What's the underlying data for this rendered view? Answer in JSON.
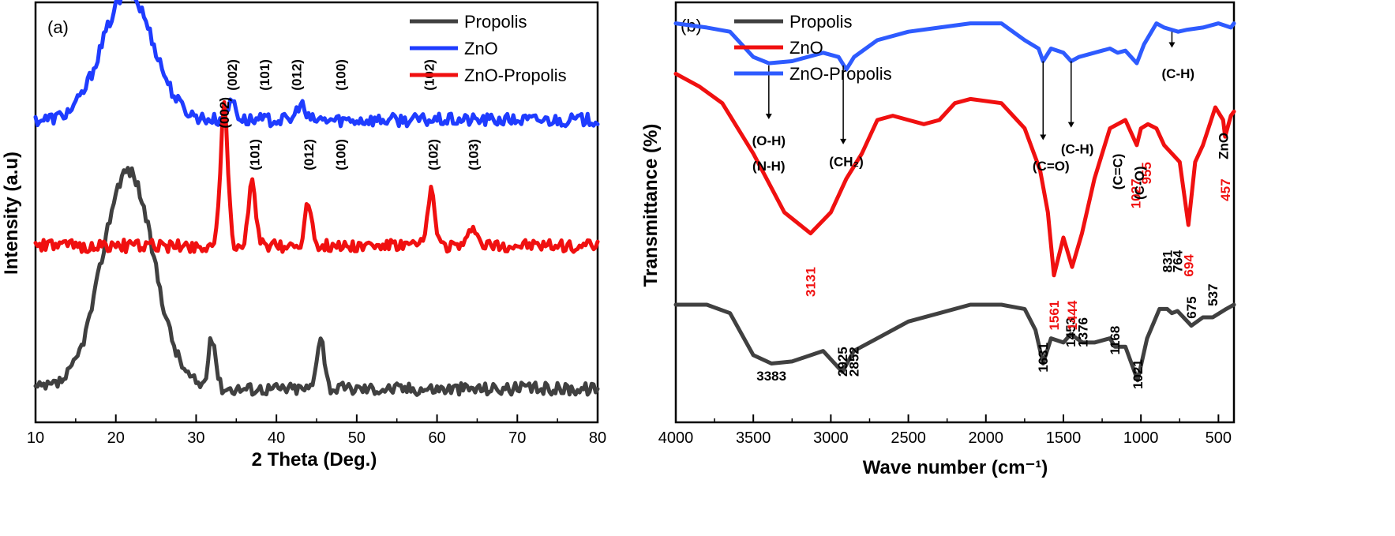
{
  "colors": {
    "black": "#404040",
    "blue": "#1f3cff",
    "red": "#f01010",
    "blue_b": "#2e5bff"
  },
  "chart_data": [
    {
      "type": "line",
      "panel_label": "(a)",
      "xlabel": "2 Theta (Deg.)",
      "ylabel": "Intensity (a.u)",
      "xlim": [
        10,
        80
      ],
      "x_ticks": [
        10,
        20,
        30,
        40,
        50,
        60,
        70,
        80
      ],
      "y_ticks_shown": false,
      "legend_position": "top-right",
      "series": [
        {
          "name": "Propolis",
          "color": "#404040",
          "baseline": 0.08,
          "peaks": [
            [
              21.5,
              0.52
            ],
            [
              32,
              0.12
            ],
            [
              45.5,
              0.13
            ]
          ]
        },
        {
          "name": "ZnO",
          "color": "#1f3cff",
          "baseline": 0.72,
          "peaks": [
            [
              21.5,
              0.3
            ],
            [
              34.5,
              0.05
            ],
            [
              43,
              0.04
            ]
          ]
        },
        {
          "name": "ZnO-Propolis",
          "color": "#f01010",
          "baseline": 0.42,
          "peaks": [
            [
              33.5,
              0.33
            ],
            [
              37,
              0.15
            ],
            [
              44,
              0.1
            ],
            [
              59.3,
              0.13
            ],
            [
              64.5,
              0.05
            ]
          ]
        }
      ],
      "annotations": [
        {
          "series": "ZnO",
          "labels": [
            {
              "x": 34.5,
              "text": "(002)"
            },
            {
              "x": 38.5,
              "text": "(101)"
            },
            {
              "x": 42.5,
              "text": "(012)"
            },
            {
              "x": 48,
              "text": "(100)"
            },
            {
              "x": 59,
              "text": "(102)"
            }
          ]
        },
        {
          "series": "ZnO-Propolis",
          "labels": [
            {
              "x": 33.5,
              "text": "(002)"
            },
            {
              "x": 37.3,
              "text": "(101)"
            },
            {
              "x": 44,
              "text": "(012)"
            },
            {
              "x": 48,
              "text": "(100)"
            },
            {
              "x": 59.5,
              "text": "(102)"
            },
            {
              "x": 64.5,
              "text": "(103)"
            }
          ]
        }
      ]
    },
    {
      "type": "line",
      "panel_label": "(b)",
      "xlabel": "Wave number (cm⁻¹)",
      "ylabel": "Transmittance (%)",
      "xlim": [
        4000,
        400
      ],
      "x_ticks": [
        4000,
        3500,
        3000,
        2500,
        2000,
        1500,
        1000,
        500
      ],
      "y_ticks_shown": false,
      "legend_position": "top-left",
      "series": [
        {
          "name": "Propolis",
          "color": "#404040",
          "points": [
            [
              4000,
              0.28
            ],
            [
              3800,
              0.28
            ],
            [
              3650,
              0.26
            ],
            [
              3500,
              0.16
            ],
            [
              3383,
              0.14
            ],
            [
              3250,
              0.145
            ],
            [
              3050,
              0.17
            ],
            [
              2925,
              0.12
            ],
            [
              2852,
              0.17
            ],
            [
              2700,
              0.2
            ],
            [
              2500,
              0.24
            ],
            [
              2300,
              0.26
            ],
            [
              2100,
              0.28
            ],
            [
              1900,
              0.28
            ],
            [
              1750,
              0.27
            ],
            [
              1680,
              0.22
            ],
            [
              1631,
              0.14
            ],
            [
              1580,
              0.2
            ],
            [
              1500,
              0.19
            ],
            [
              1453,
              0.21
            ],
            [
              1376,
              0.19
            ],
            [
              1300,
              0.19
            ],
            [
              1200,
              0.2
            ],
            [
              1168,
              0.18
            ],
            [
              1100,
              0.18
            ],
            [
              1021,
              0.1
            ],
            [
              960,
              0.2
            ],
            [
              880,
              0.27
            ],
            [
              831,
              0.27
            ],
            [
              800,
              0.26
            ],
            [
              764,
              0.265
            ],
            [
              700,
              0.24
            ],
            [
              675,
              0.23
            ],
            [
              600,
              0.25
            ],
            [
              537,
              0.25
            ],
            [
              450,
              0.27
            ],
            [
              400,
              0.28
            ]
          ],
          "peak_labels": [
            "3383",
            "2925",
            "2852",
            "1631",
            "1453",
            "1376",
            "1168",
            "1021",
            "831",
            "764",
            "675",
            "537"
          ]
        },
        {
          "name": "ZnO",
          "color": "#f01010",
          "points": [
            [
              4000,
              0.83
            ],
            [
              3850,
              0.8
            ],
            [
              3700,
              0.76
            ],
            [
              3500,
              0.64
            ],
            [
              3300,
              0.5
            ],
            [
              3131,
              0.45
            ],
            [
              3000,
              0.5
            ],
            [
              2900,
              0.58
            ],
            [
              2800,
              0.64
            ],
            [
              2700,
              0.72
            ],
            [
              2600,
              0.73
            ],
            [
              2500,
              0.72
            ],
            [
              2400,
              0.71
            ],
            [
              2300,
              0.72
            ],
            [
              2200,
              0.76
            ],
            [
              2100,
              0.77
            ],
            [
              1900,
              0.76
            ],
            [
              1750,
              0.7
            ],
            [
              1650,
              0.6
            ],
            [
              1600,
              0.5
            ],
            [
              1561,
              0.35
            ],
            [
              1500,
              0.44
            ],
            [
              1444,
              0.37
            ],
            [
              1380,
              0.45
            ],
            [
              1300,
              0.58
            ],
            [
              1200,
              0.7
            ],
            [
              1100,
              0.72
            ],
            [
              1027,
              0.66
            ],
            [
              1000,
              0.7
            ],
            [
              955,
              0.71
            ],
            [
              900,
              0.7
            ],
            [
              850,
              0.66
            ],
            [
              750,
              0.62
            ],
            [
              694,
              0.47
            ],
            [
              650,
              0.62
            ],
            [
              600,
              0.66
            ],
            [
              520,
              0.75
            ],
            [
              470,
              0.72
            ],
            [
              457,
              0.68
            ],
            [
              420,
              0.73
            ],
            [
              400,
              0.74
            ]
          ],
          "peak_labels": [
            "3131",
            "1561",
            "1444",
            "1027",
            "955",
            "694",
            "457"
          ]
        },
        {
          "name": "ZnO-Propolis",
          "color": "#2e5bff",
          "points": [
            [
              4000,
              0.95
            ],
            [
              3800,
              0.94
            ],
            [
              3650,
              0.93
            ],
            [
              3500,
              0.87
            ],
            [
              3400,
              0.855
            ],
            [
              3250,
              0.86
            ],
            [
              3050,
              0.88
            ],
            [
              2950,
              0.87
            ],
            [
              2900,
              0.84
            ],
            [
              2850,
              0.87
            ],
            [
              2700,
              0.91
            ],
            [
              2500,
              0.93
            ],
            [
              2300,
              0.94
            ],
            [
              2100,
              0.95
            ],
            [
              1900,
              0.95
            ],
            [
              1750,
              0.91
            ],
            [
              1660,
              0.89
            ],
            [
              1631,
              0.86
            ],
            [
              1580,
              0.89
            ],
            [
              1500,
              0.88
            ],
            [
              1450,
              0.86
            ],
            [
              1400,
              0.87
            ],
            [
              1300,
              0.88
            ],
            [
              1200,
              0.89
            ],
            [
              1150,
              0.88
            ],
            [
              1100,
              0.885
            ],
            [
              1027,
              0.855
            ],
            [
              980,
              0.9
            ],
            [
              900,
              0.95
            ],
            [
              850,
              0.94
            ],
            [
              760,
              0.93
            ],
            [
              700,
              0.935
            ],
            [
              600,
              0.94
            ],
            [
              500,
              0.95
            ],
            [
              420,
              0.94
            ],
            [
              400,
              0.95
            ]
          ],
          "annotation_labels": [
            "(O-H)",
            "(N-H)",
            "(CH₂)",
            "(C=O)",
            "(C-H)",
            "(C=C)",
            "(C-O)",
            "(C-H)",
            "ZnO"
          ]
        }
      ]
    }
  ]
}
